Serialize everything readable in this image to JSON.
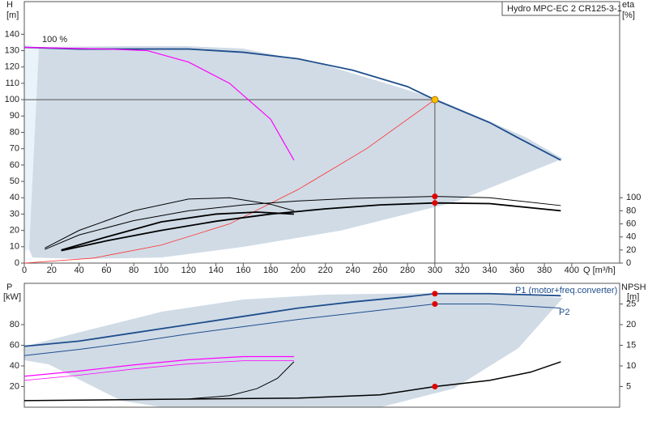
{
  "chart_data": [
    {
      "type": "line",
      "title": "Hydro MPC-EC 2 CR125-3-1",
      "x_label": "Q [m³/h]",
      "y_label": "H",
      "y_unit": "[m]",
      "y2_label": "eta",
      "y2_unit": "[%]",
      "annotation": "100 %",
      "xlim": [
        0,
        435
      ],
      "xticks": [
        0,
        20,
        40,
        60,
        80,
        100,
        120,
        140,
        160,
        180,
        200,
        220,
        240,
        260,
        280,
        300,
        320,
        340,
        360,
        380,
        400
      ],
      "ylim": [
        0,
        160
      ],
      "yticks": [
        0,
        10,
        20,
        30,
        40,
        50,
        60,
        70,
        80,
        90,
        100,
        110,
        120,
        130,
        140
      ],
      "y2lim": [
        0,
        400
      ],
      "y2ticks": [
        0,
        20,
        40,
        60,
        80,
        100
      ],
      "duty_point": {
        "x": 300,
        "y": 100
      },
      "series": [
        {
          "color": "#1f4e8c",
          "width": 1.8,
          "x": [
            0,
            40,
            80,
            120,
            160,
            200,
            240,
            280,
            300,
            340,
            360,
            392
          ],
          "values": [
            132,
            131,
            131,
            131,
            129,
            125,
            118,
            108,
            100,
            86,
            77,
            63
          ]
        },
        {
          "color": "#ff00ff",
          "width": 1.2,
          "x": [
            0,
            60,
            90,
            120,
            150,
            180,
            197
          ],
          "values": [
            132,
            131,
            130,
            123,
            110,
            88,
            63
          ]
        },
        {
          "color": "#ff3030",
          "width": 0.8,
          "x": [
            0,
            50,
            100,
            150,
            200,
            250,
            300
          ],
          "values": [
            0,
            3,
            11,
            24,
            45,
            70,
            100
          ]
        },
        {
          "color": "#000000",
          "width": 1,
          "axis": "y2",
          "marked": true,
          "x": [
            15,
            40,
            80,
            120,
            160,
            200,
            240,
            280,
            300,
            340,
            392
          ],
          "values": [
            21,
            43,
            65,
            80,
            89,
            95,
            99,
            101,
            102,
            100,
            88
          ]
        },
        {
          "color": "#000000",
          "width": 1.8,
          "axis": "y2",
          "marked": true,
          "x": [
            27,
            60,
            100,
            140,
            180,
            220,
            260,
            300,
            340,
            392
          ],
          "values": [
            19,
            34,
            50,
            64,
            75,
            83,
            89,
            92,
            91,
            80
          ]
        },
        {
          "color": "#000000",
          "width": 1,
          "axis": "y2",
          "x": [
            15,
            40,
            80,
            120,
            150,
            180,
            197
          ],
          "values": [
            23,
            50,
            80,
            98,
            100,
            90,
            80
          ]
        },
        {
          "color": "#000000",
          "width": 1.8,
          "axis": "y2",
          "x": [
            27,
            60,
            100,
            140,
            170,
            197
          ],
          "values": [
            20,
            40,
            63,
            75,
            78,
            75
          ]
        }
      ]
    },
    {
      "type": "line",
      "y_label": "P",
      "y_unit": "[kW]",
      "y2_label": "NPSH",
      "y2_unit": "[m]",
      "xlim": [
        0,
        435
      ],
      "ylim": [
        0,
        120
      ],
      "yticks": [
        20,
        40,
        60,
        80
      ],
      "y2lim": [
        0,
        30
      ],
      "y2ticks": [
        5,
        10,
        15,
        20,
        25
      ],
      "series": [
        {
          "name": "P1 (motor+freq.converter)",
          "color": "#1f4e8c",
          "width": 1.8,
          "marked": true,
          "x": [
            0,
            40,
            80,
            120,
            160,
            200,
            240,
            280,
            300,
            340,
            392
          ],
          "values": [
            59,
            64,
            72,
            80,
            88,
            96,
            102,
            107,
            110,
            110,
            108
          ]
        },
        {
          "name": "P2",
          "color": "#1f4e8c",
          "width": 1,
          "marked": true,
          "x": [
            0,
            40,
            80,
            120,
            160,
            200,
            240,
            280,
            300,
            340,
            392
          ],
          "values": [
            50,
            56,
            63,
            71,
            78,
            85,
            91,
            97,
            100,
            100,
            96
          ]
        },
        {
          "color": "#ff00ff",
          "width": 1.2,
          "x": [
            0,
            40,
            80,
            120,
            160,
            197
          ],
          "values": [
            30,
            35,
            41,
            46,
            49,
            49
          ]
        },
        {
          "color": "#ff00ff",
          "width": 0.8,
          "x": [
            0,
            40,
            80,
            120,
            160,
            197
          ],
          "values": [
            26,
            31,
            37,
            42,
            45,
            45
          ]
        },
        {
          "color": "#000000",
          "width": 1.5,
          "axis": "y2",
          "marked": true,
          "x": [
            0,
            100,
            200,
            260,
            300,
            340,
            370,
            392
          ],
          "values": [
            1.6,
            1.9,
            2.2,
            3,
            5,
            6.5,
            8.5,
            11
          ]
        },
        {
          "color": "#000000",
          "width": 1,
          "axis": "y2",
          "x": [
            120,
            150,
            170,
            185,
            197
          ],
          "values": [
            2,
            2.8,
            4.5,
            7,
            11
          ]
        }
      ]
    }
  ]
}
